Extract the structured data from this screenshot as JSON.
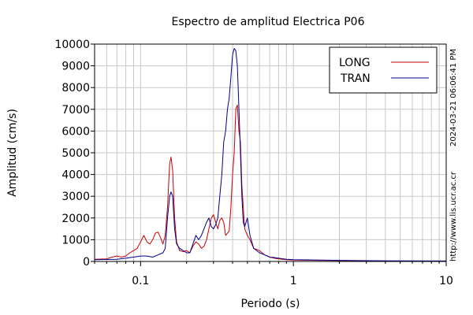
{
  "chart_data": {
    "type": "line",
    "title": "Espectro de amplitud Electrica P06",
    "xlabel": "Periodo (s)",
    "ylabel": "Amplitud (cm/s)",
    "x_scale": "log",
    "xlim": [
      0.05,
      10
    ],
    "ylim": [
      0,
      10000
    ],
    "x_ticks": [
      0.1,
      1,
      10
    ],
    "x_tick_labels": [
      "0.1",
      "1",
      "10"
    ],
    "y_ticks": [
      0,
      1000,
      2000,
      3000,
      4000,
      5000,
      6000,
      7000,
      8000,
      9000,
      10000
    ],
    "y_tick_labels": [
      "0",
      "1000",
      "2000",
      "3000",
      "4000",
      "5000",
      "6000",
      "7000",
      "8000",
      "9000",
      "10000"
    ],
    "grid": true,
    "legend_position": "top-right",
    "side_labels": {
      "timestamp": "2024-03-21 06:06:41 PM",
      "url": "http://www.lis.ucr.ac.cr"
    },
    "series": [
      {
        "name": "LONG",
        "color": "#cc0000",
        "points": [
          [
            0.05,
            100
          ],
          [
            0.06,
            120
          ],
          [
            0.065,
            200
          ],
          [
            0.07,
            250
          ],
          [
            0.075,
            200
          ],
          [
            0.08,
            250
          ],
          [
            0.085,
            400
          ],
          [
            0.09,
            500
          ],
          [
            0.095,
            600
          ],
          [
            0.1,
            900
          ],
          [
            0.105,
            1200
          ],
          [
            0.11,
            900
          ],
          [
            0.115,
            800
          ],
          [
            0.12,
            1000
          ],
          [
            0.125,
            1300
          ],
          [
            0.13,
            1350
          ],
          [
            0.135,
            1100
          ],
          [
            0.14,
            800
          ],
          [
            0.145,
            1200
          ],
          [
            0.15,
            2500
          ],
          [
            0.155,
            4500
          ],
          [
            0.158,
            4800
          ],
          [
            0.162,
            4200
          ],
          [
            0.167,
            2000
          ],
          [
            0.172,
            900
          ],
          [
            0.18,
            500
          ],
          [
            0.19,
            450
          ],
          [
            0.2,
            500
          ],
          [
            0.21,
            400
          ],
          [
            0.22,
            700
          ],
          [
            0.23,
            900
          ],
          [
            0.24,
            800
          ],
          [
            0.25,
            600
          ],
          [
            0.26,
            700
          ],
          [
            0.27,
            1000
          ],
          [
            0.28,
            1500
          ],
          [
            0.29,
            2000
          ],
          [
            0.3,
            2150
          ],
          [
            0.31,
            1800
          ],
          [
            0.32,
            1500
          ],
          [
            0.33,
            1900
          ],
          [
            0.34,
            2000
          ],
          [
            0.35,
            1800
          ],
          [
            0.36,
            1200
          ],
          [
            0.37,
            1300
          ],
          [
            0.38,
            1400
          ],
          [
            0.39,
            2500
          ],
          [
            0.4,
            4000
          ],
          [
            0.41,
            5000
          ],
          [
            0.42,
            7000
          ],
          [
            0.43,
            7200
          ],
          [
            0.44,
            6000
          ],
          [
            0.45,
            5500
          ],
          [
            0.46,
            3500
          ],
          [
            0.47,
            2500
          ],
          [
            0.48,
            1500
          ],
          [
            0.5,
            1200
          ],
          [
            0.52,
            1000
          ],
          [
            0.55,
            600
          ],
          [
            0.6,
            500
          ],
          [
            0.65,
            300
          ],
          [
            0.7,
            200
          ],
          [
            0.75,
            150
          ],
          [
            0.8,
            120
          ],
          [
            0.9,
            80
          ],
          [
            1.0,
            60
          ],
          [
            2,
            40
          ],
          [
            4,
            20
          ],
          [
            10,
            10
          ]
        ]
      },
      {
        "name": "TRAN",
        "color": "#00008b",
        "points": [
          [
            0.05,
            80
          ],
          [
            0.06,
            90
          ],
          [
            0.07,
            100
          ],
          [
            0.08,
            150
          ],
          [
            0.09,
            200
          ],
          [
            0.1,
            250
          ],
          [
            0.11,
            250
          ],
          [
            0.12,
            200
          ],
          [
            0.13,
            300
          ],
          [
            0.14,
            400
          ],
          [
            0.145,
            600
          ],
          [
            0.15,
            2000
          ],
          [
            0.155,
            3000
          ],
          [
            0.158,
            3200
          ],
          [
            0.162,
            3000
          ],
          [
            0.167,
            1500
          ],
          [
            0.172,
            800
          ],
          [
            0.18,
            600
          ],
          [
            0.19,
            500
          ],
          [
            0.2,
            400
          ],
          [
            0.21,
            400
          ],
          [
            0.22,
            800
          ],
          [
            0.23,
            1200
          ],
          [
            0.24,
            1000
          ],
          [
            0.25,
            1200
          ],
          [
            0.26,
            1500
          ],
          [
            0.27,
            1800
          ],
          [
            0.28,
            2000
          ],
          [
            0.29,
            1600
          ],
          [
            0.3,
            1500
          ],
          [
            0.31,
            1700
          ],
          [
            0.32,
            2000
          ],
          [
            0.33,
            3000
          ],
          [
            0.34,
            4000
          ],
          [
            0.35,
            5500
          ],
          [
            0.36,
            6000
          ],
          [
            0.37,
            7000
          ],
          [
            0.38,
            7500
          ],
          [
            0.39,
            8500
          ],
          [
            0.4,
            9500
          ],
          [
            0.41,
            9800
          ],
          [
            0.42,
            9700
          ],
          [
            0.43,
            9000
          ],
          [
            0.44,
            7000
          ],
          [
            0.45,
            5000
          ],
          [
            0.46,
            3000
          ],
          [
            0.47,
            1800
          ],
          [
            0.48,
            1600
          ],
          [
            0.5,
            2000
          ],
          [
            0.52,
            1200
          ],
          [
            0.55,
            600
          ],
          [
            0.6,
            400
          ],
          [
            0.65,
            300
          ],
          [
            0.7,
            200
          ],
          [
            0.75,
            180
          ],
          [
            0.8,
            150
          ],
          [
            0.9,
            100
          ],
          [
            1.0,
            80
          ],
          [
            2,
            50
          ],
          [
            4,
            30
          ],
          [
            10,
            20
          ]
        ]
      }
    ]
  }
}
